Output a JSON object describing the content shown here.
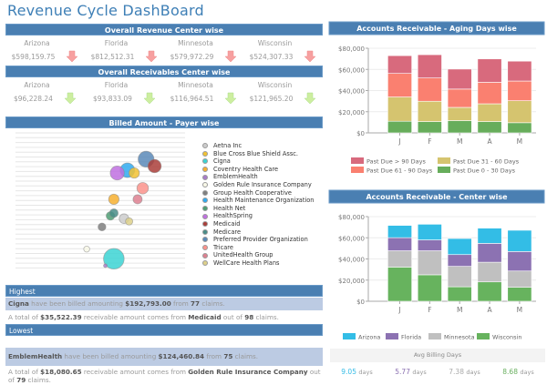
{
  "app_title": "Revenue Cycle DashBoard",
  "revenue": {
    "header": "Overall Revenue Center wise",
    "centers": [
      {
        "name": "Arizona",
        "value": "$598,159.75",
        "trend": "down"
      },
      {
        "name": "Florida",
        "value": "$812,512.31",
        "trend": "down"
      },
      {
        "name": "Minnesota",
        "value": "$579,972.29",
        "trend": "down"
      },
      {
        "name": "Wisconsin",
        "value": "$524,307.33",
        "trend": "down"
      }
    ],
    "arrow_color": "#f7a0a0"
  },
  "receivables": {
    "header": "Overall Receivables Center wise",
    "centers": [
      {
        "name": "Arizona",
        "value": "$96,228.24",
        "trend": "down"
      },
      {
        "name": "Florida",
        "value": "$93,833.09",
        "trend": "down"
      },
      {
        "name": "Minnesota",
        "value": "$116,964.51",
        "trend": "down"
      },
      {
        "name": "Wisconsin",
        "value": "$121,965.20",
        "trend": "down"
      }
    ],
    "arrow_color": "#cdeea0"
  },
  "billed": {
    "header": "Billed Amount - Payer wise"
  },
  "highest": {
    "header": "Highest",
    "billed_payer": "Cigna",
    "billed_text1": " have been billed amounting ",
    "billed_amount": "$192,793.00",
    "billed_text2": " from ",
    "billed_claims": "77",
    "billed_text3": " claims.",
    "recv_text1": "A total of ",
    "recv_amount": "$35,522.39",
    "recv_text2": " receivable amount comes from ",
    "recv_payer": "Medicaid",
    "recv_text3": " out of ",
    "recv_claims": "98",
    "recv_text4": " claims."
  },
  "lowest": {
    "header": "Lowest",
    "billed_payer": "EmblemHealth",
    "billed_text1": " have been billed amounting ",
    "billed_amount": "$124,460.84",
    "billed_text2": " from ",
    "billed_claims": "75",
    "billed_text3": " claims.",
    "recv_text1": "A total of ",
    "recv_amount": "$18,080.65",
    "recv_text2": " receivable amount comes from ",
    "recv_payer": "Golden Rule Insurance Company",
    "recv_text3": " out of ",
    "recv_claims": "79",
    "recv_text4": " claims."
  },
  "avg_billing": {
    "header": "Avg Billing Days",
    "unit": "days",
    "items": [
      {
        "center": "Arizona",
        "value": "9.05",
        "color": "#33bbe6"
      },
      {
        "center": "Florida",
        "value": "5.77",
        "color": "#8a6fb0"
      },
      {
        "center": "Minnesota",
        "value": "7.38",
        "color": "#aaaaaa"
      },
      {
        "center": "Wisconsin",
        "value": "8.68",
        "color": "#6ab060"
      }
    ]
  },
  "chart_data": [
    {
      "id": "payer-bubble",
      "type": "scatter",
      "title": "Billed Amount - Payer wise",
      "xlabel": "",
      "ylabel": "",
      "grid": true,
      "legend": "right",
      "note": "bubble chart; x/y in relative units (0-100), size relative",
      "series": [
        {
          "name": "Aetna Inc",
          "color": "#cccccc",
          "x": 64,
          "y": 38,
          "size": 5.3
        },
        {
          "name": "Blue Cross Blue Shield Assc.",
          "color": "#f2c232",
          "x": 70,
          "y": 71,
          "size": 5.7
        },
        {
          "name": "Cigna",
          "color": "#3cd3d3",
          "x": 58,
          "y": 9,
          "size": 11.3
        },
        {
          "name": "Coventry Health Care",
          "color": "#f7b030",
          "x": 58,
          "y": 52,
          "size": 5.7
        },
        {
          "name": "EmblemHealth",
          "color": "#a87cc8",
          "x": 53,
          "y": 4,
          "size": 2
        },
        {
          "name": "Golden Rule Insurance Company",
          "color": "#f8f8e8",
          "x": 42,
          "y": 16,
          "size": 3.3
        },
        {
          "name": "Group Health Cooperative",
          "color": "#7f7f7f",
          "x": 51,
          "y": 32,
          "size": 4.3
        },
        {
          "name": "Health Maintenance Organization",
          "color": "#30aaf0",
          "x": 66,
          "y": 73,
          "size": 8
        },
        {
          "name": "Health Net",
          "color": "#4f9f74",
          "x": 56,
          "y": 40,
          "size": 4.7
        },
        {
          "name": "HealthSpring",
          "color": "#c070e0",
          "x": 60,
          "y": 71,
          "size": 7.7
        },
        {
          "name": "Medicaid",
          "color": "#aa3e3a",
          "x": 82,
          "y": 76,
          "size": 7.3
        },
        {
          "name": "Medicare",
          "color": "#4a8d88",
          "x": 58,
          "y": 42,
          "size": 4.7
        },
        {
          "name": "Preferred Provider Organization",
          "color": "#5b8ab8",
          "x": 77,
          "y": 81,
          "size": 8.7
        },
        {
          "name": "Tricare",
          "color": "#fb938c",
          "x": 75,
          "y": 60,
          "size": 6.3
        },
        {
          "name": "UnitedHealth Group",
          "color": "#de8090",
          "x": 72,
          "y": 52,
          "size": 5
        },
        {
          "name": "WellCare Health Plans",
          "color": "#ddd08a",
          "x": 67,
          "y": 36,
          "size": 4
        }
      ]
    },
    {
      "id": "aging-days",
      "type": "bar",
      "stacked": true,
      "title": "Accounts Receivable  - Aging Days wise",
      "xlabel": "",
      "ylabel": "",
      "categories": [
        "J",
        "F",
        "M",
        "A",
        "M"
      ],
      "ylim": [
        0,
        80000
      ],
      "yticks": [
        "$0",
        "$20,000",
        "$40,000",
        "$60,000",
        "$80,000"
      ],
      "grid": true,
      "legend": "bottom",
      "series": [
        {
          "name": "Past Due  0 - 30 Days",
          "color": "#67ad5b",
          "values": [
            11000,
            10700,
            11600,
            10700,
            9600
          ]
        },
        {
          "name": "Past Due 31 - 60 Days",
          "color": "#d5c46f",
          "values": [
            22900,
            19200,
            12500,
            16800,
            20800
          ]
        },
        {
          "name": "Past Due 61 - 90 Days",
          "color": "#fa8070",
          "values": [
            22300,
            22000,
            17300,
            20300,
            18600
          ]
        },
        {
          "name": "Past Due  > 90 Days",
          "color": "#d86a7d",
          "values": [
            16800,
            22000,
            18900,
            22100,
            18800
          ]
        }
      ],
      "legend_order": [
        "Past Due  > 90 Days",
        "Past Due 31 - 60 Days",
        "Past Due 61 - 90 Days",
        "Past Due  0 - 30 Days"
      ]
    },
    {
      "id": "center-wise",
      "type": "bar",
      "stacked": true,
      "title": "Accounts Receivable - Center wise",
      "xlabel": "",
      "ylabel": "",
      "categories": [
        "J",
        "F",
        "M",
        "A",
        "M"
      ],
      "ylim": [
        0,
        80000
      ],
      "yticks": [
        "$0",
        "$20,000",
        "$40,000",
        "$60,000",
        "$80,000"
      ],
      "grid": true,
      "legend": "bottom",
      "series": [
        {
          "name": "Wisconsin",
          "color": "#67b35e",
          "values": [
            32300,
            25000,
            13700,
            18300,
            13200
          ]
        },
        {
          "name": "Minnesota",
          "color": "#c0c0c0",
          "values": [
            15400,
            22700,
            19300,
            18600,
            15400
          ]
        },
        {
          "name": "Florida",
          "color": "#8c72b2",
          "values": [
            12400,
            10300,
            11100,
            17800,
            18400
          ]
        },
        {
          "name": "Arizona",
          "color": "#33bde6",
          "values": [
            11600,
            14800,
            15200,
            14400,
            20100
          ]
        }
      ],
      "legend_order": [
        "Arizona",
        "Florida",
        "Minnesota",
        "Wisconsin"
      ]
    }
  ]
}
